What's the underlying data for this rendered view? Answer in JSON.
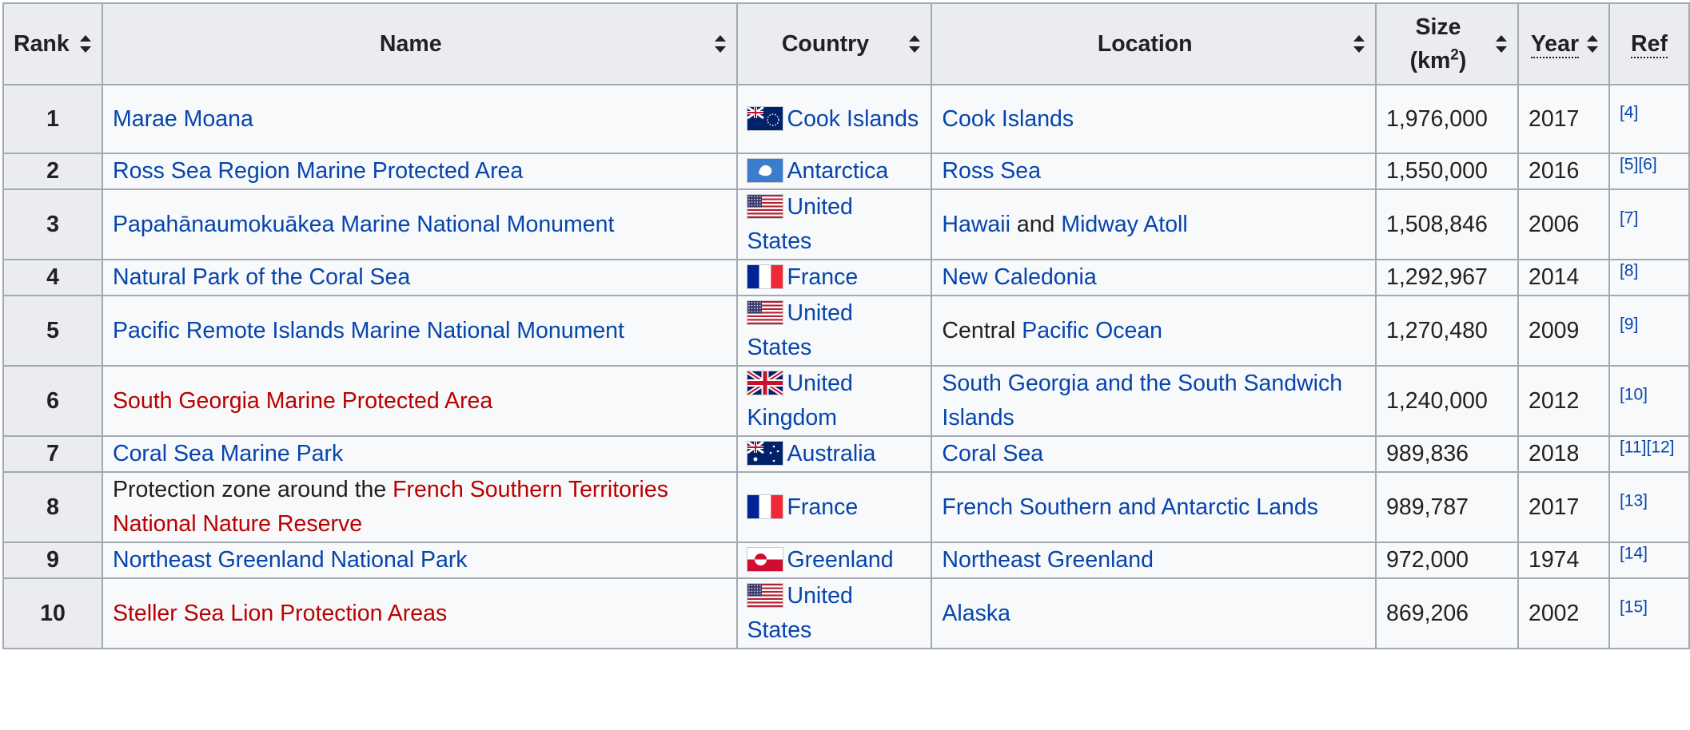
{
  "headers": {
    "rank": "Rank",
    "name": "Name",
    "country": "Country",
    "location": "Location",
    "size_line1": "Size",
    "size_line2_pre": "(km",
    "size_sup": "2",
    "size_line2_post": ")",
    "year": "Year",
    "ref": "Ref"
  },
  "rows": [
    {
      "rank": "1",
      "name": [
        {
          "text": "Marae Moana",
          "style": "link"
        }
      ],
      "flag": "cook-islands-flag",
      "country": "Cook Islands",
      "location": [
        {
          "text": "Cook Islands",
          "style": "link"
        }
      ],
      "size": "1,976,000",
      "year": "2017",
      "ref": "[4]"
    },
    {
      "rank": "2",
      "name": [
        {
          "text": "Ross Sea Region Marine Protected Area",
          "style": "link"
        }
      ],
      "flag": "antarctica-flag",
      "country": "Antarctica",
      "location": [
        {
          "text": "Ross Sea",
          "style": "link"
        }
      ],
      "size": "1,550,000",
      "year": "2016",
      "ref": "[5][6]"
    },
    {
      "rank": "3",
      "name": [
        {
          "text": "Papahānaumokuākea Marine National Monument",
          "style": "link"
        }
      ],
      "flag": "us-flag",
      "country": "United States",
      "location": [
        {
          "text": "Hawaii",
          "style": "link"
        },
        {
          "text": " and ",
          "style": "plain"
        },
        {
          "text": "Midway Atoll",
          "style": "link"
        }
      ],
      "size": "1,508,846",
      "year": "2006",
      "ref": "[7]"
    },
    {
      "rank": "4",
      "name": [
        {
          "text": "Natural Park of the Coral Sea",
          "style": "link"
        }
      ],
      "flag": "france-flag",
      "country": "France",
      "location": [
        {
          "text": "New Caledonia",
          "style": "link"
        }
      ],
      "size": "1,292,967",
      "year": "2014",
      "ref": "[8]"
    },
    {
      "rank": "5",
      "name": [
        {
          "text": "Pacific Remote Islands Marine National Monument",
          "style": "link"
        }
      ],
      "flag": "us-flag",
      "country": "United States",
      "location": [
        {
          "text": "Central ",
          "style": "plain"
        },
        {
          "text": "Pacific Ocean",
          "style": "link"
        }
      ],
      "size": "1,270,480",
      "year": "2009",
      "ref": "[9]"
    },
    {
      "rank": "6",
      "name": [
        {
          "text": "South Georgia Marine Protected Area",
          "style": "red"
        }
      ],
      "flag": "uk-flag",
      "country": "United Kingdom",
      "location": [
        {
          "text": "South Georgia and the South Sandwich Islands",
          "style": "link"
        }
      ],
      "size": "1,240,000",
      "year": "2012",
      "ref": "[10]"
    },
    {
      "rank": "7",
      "name": [
        {
          "text": "Coral Sea Marine Park",
          "style": "link"
        }
      ],
      "flag": "australia-flag",
      "country": "Australia",
      "location": [
        {
          "text": "Coral Sea",
          "style": "link"
        }
      ],
      "size": "989,836",
      "year": "2018",
      "ref": "[11][12]"
    },
    {
      "rank": "8",
      "name": [
        {
          "text": "Protection zone around the ",
          "style": "plain"
        },
        {
          "text": "French Southern Territories National Nature Reserve",
          "style": "red"
        }
      ],
      "flag": "france-flag",
      "country": "France",
      "location": [
        {
          "text": "French Southern and Antarctic Lands",
          "style": "link"
        }
      ],
      "size": "989,787",
      "year": "2017",
      "ref": "[13]"
    },
    {
      "rank": "9",
      "name": [
        {
          "text": "Northeast Greenland National Park",
          "style": "link"
        }
      ],
      "flag": "greenland-flag",
      "country": "Greenland",
      "location": [
        {
          "text": "Northeast Greenland",
          "style": "link"
        }
      ],
      "size": "972,000",
      "year": "1974",
      "ref": "[14]"
    },
    {
      "rank": "10",
      "name": [
        {
          "text": "Steller Sea Lion Protection Areas",
          "style": "red"
        }
      ],
      "flag": "us-flag",
      "country": "United States",
      "location": [
        {
          "text": "Alaska",
          "style": "link"
        }
      ],
      "size": "869,206",
      "year": "2002",
      "ref": "[15]"
    }
  ],
  "colors": {
    "link": "#0645ad",
    "redlink": "#ba0000",
    "header_bg": "#eaecf0",
    "cell_bg": "#f8f9fa",
    "border": "#a2a9b1"
  }
}
